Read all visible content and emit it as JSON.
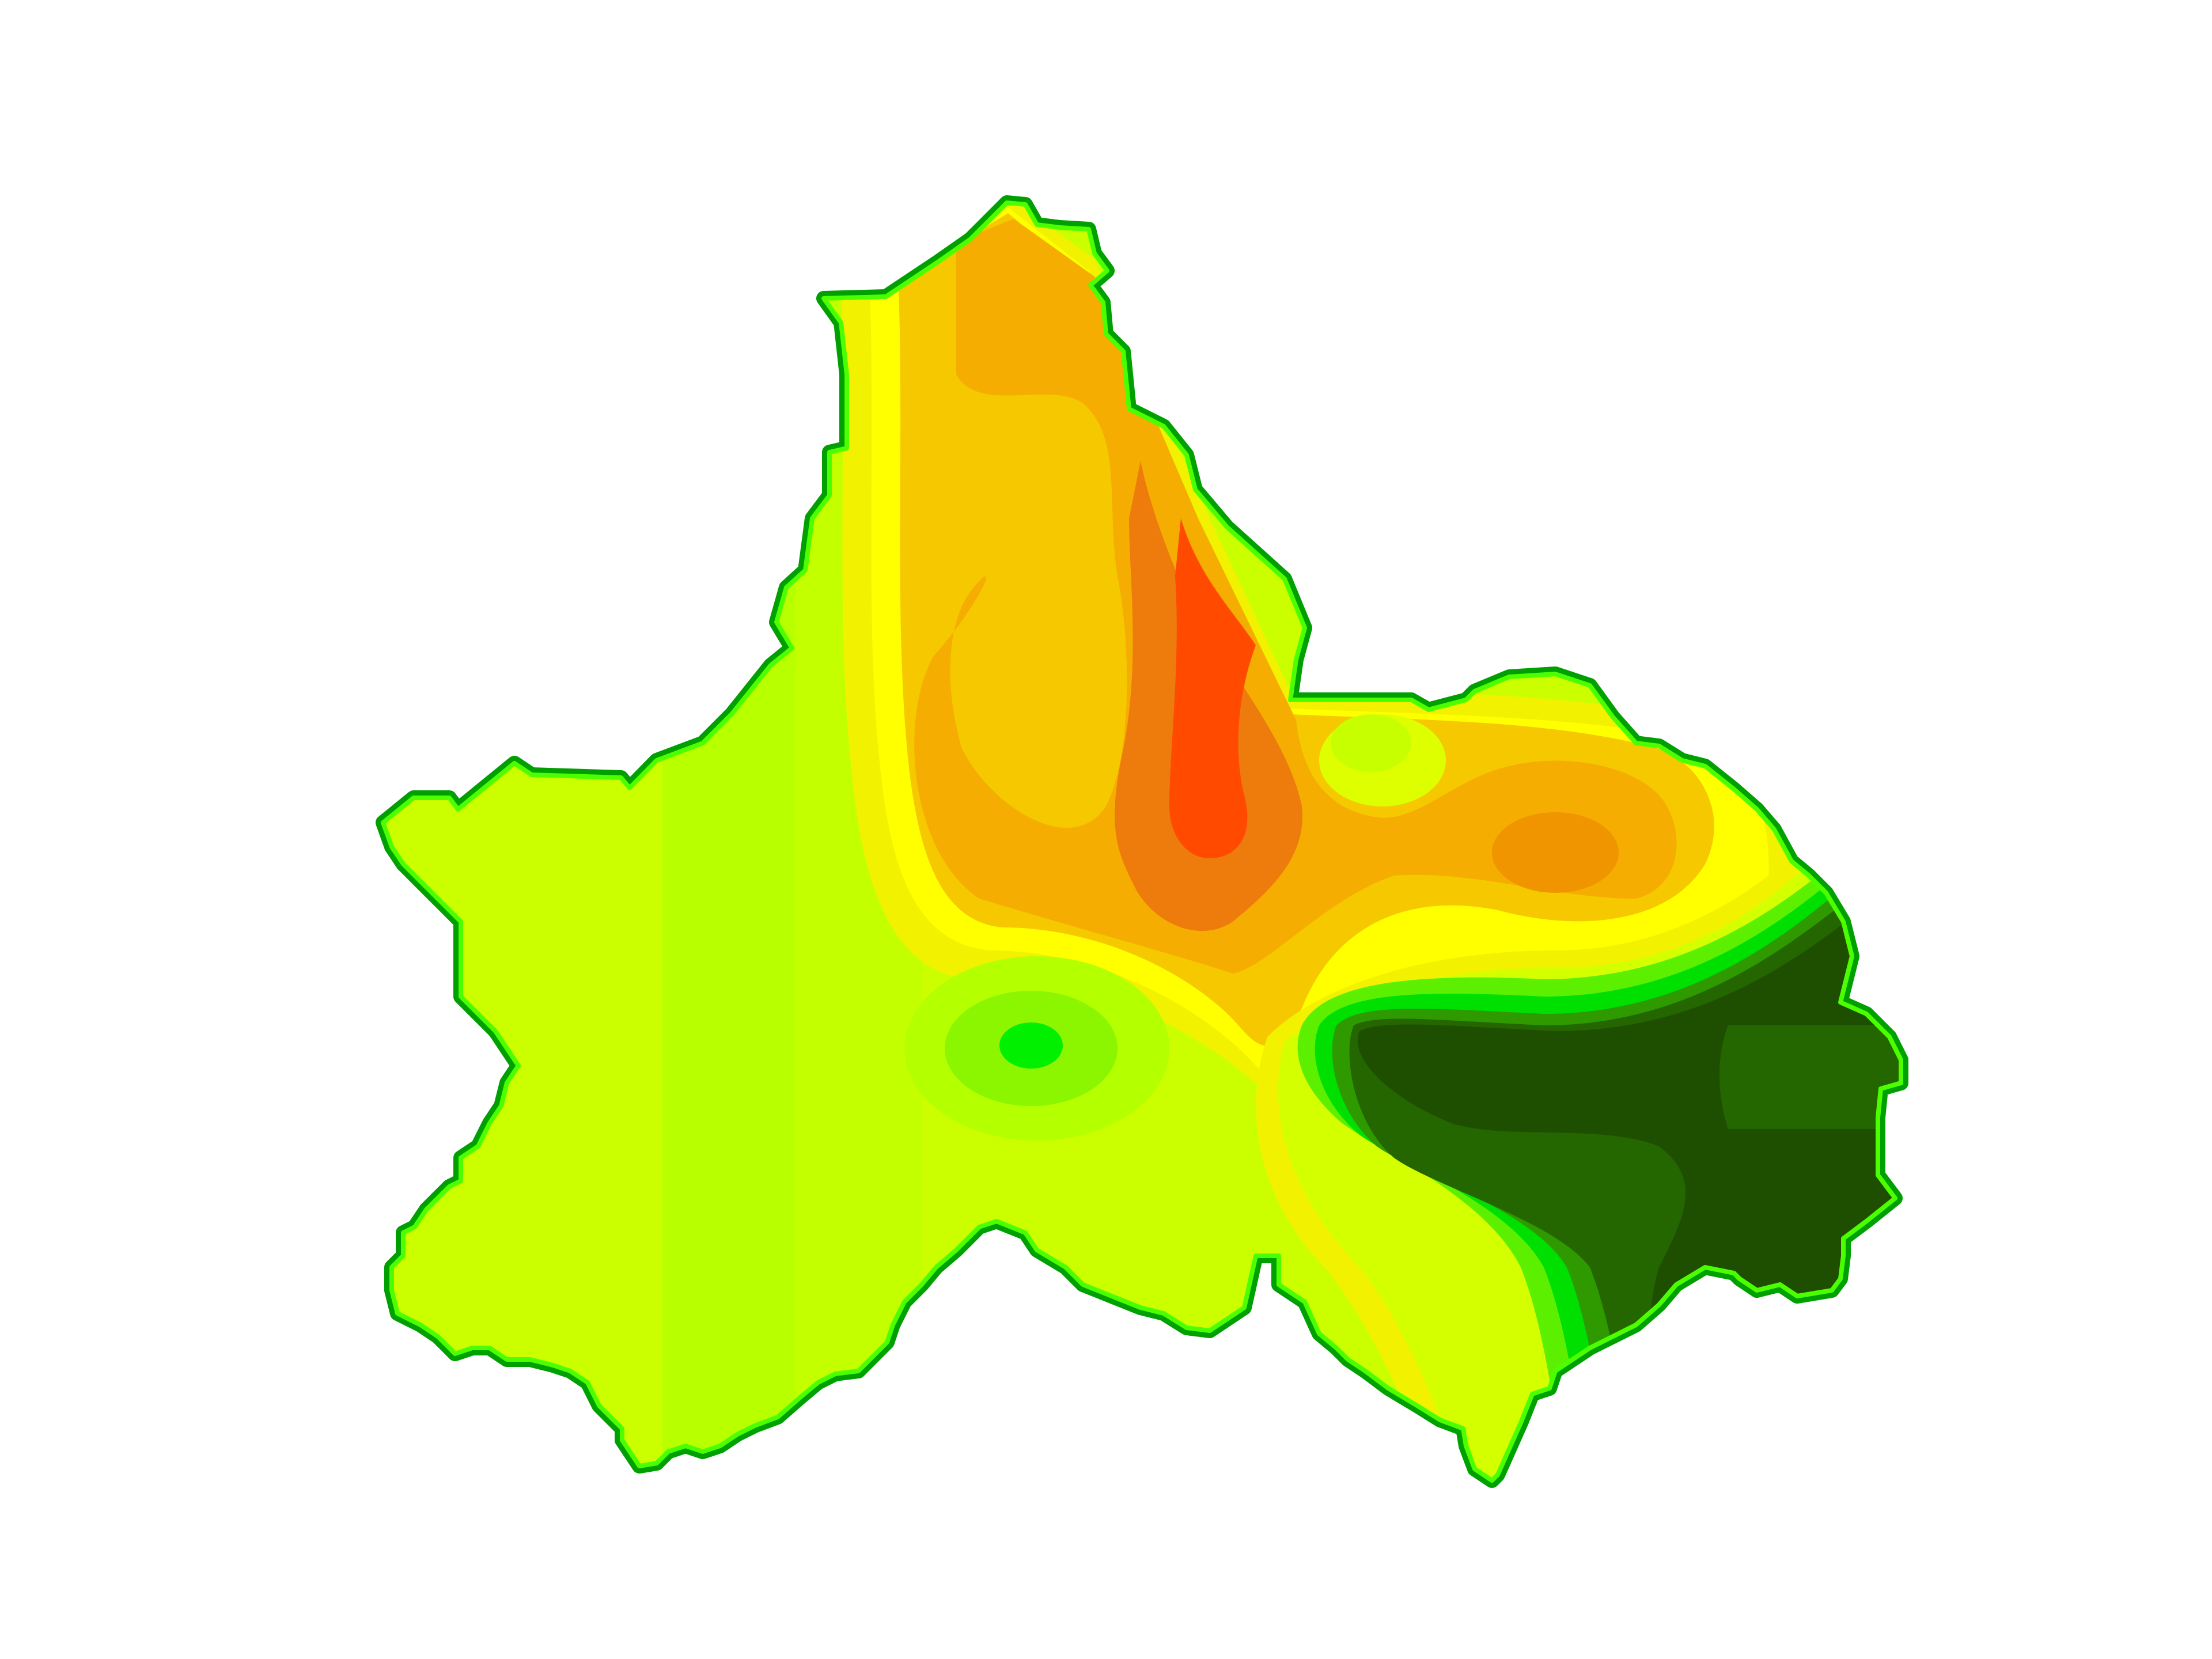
{
  "map": {
    "type": "interpolated contour surface",
    "labels_shown": false,
    "legend_shown": false,
    "color_ramp": [
      "#1e4f00",
      "#246600",
      "#2e9a00",
      "#00e000",
      "#5cf000",
      "#8cf500",
      "#b4ff00",
      "#cbff00",
      "#e6ff00",
      "#ffff00",
      "#f7d400",
      "#f5c400",
      "#f2a600",
      "#ee8e00",
      "#ec6c0c",
      "#ff4a00"
    ],
    "outline_color": "#00b400",
    "background_color": "#ffffff"
  }
}
